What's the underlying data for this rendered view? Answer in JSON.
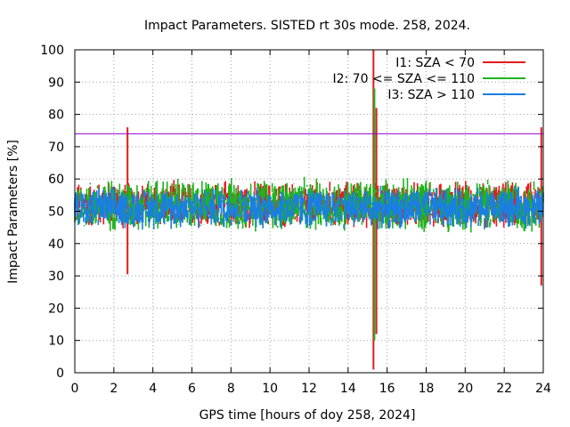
{
  "chart_data": {
    "type": "line",
    "title": "Impact Parameters. SISTED rt 30s mode. 258, 2024.",
    "xlabel": "GPS time [hours of doy 258, 2024]",
    "ylabel": "Impact Parameters [%]",
    "xlim": [
      0,
      24
    ],
    "ylim": [
      0,
      100
    ],
    "x_ticks": [
      "0",
      "2",
      "4",
      "6",
      "8",
      "10",
      "12",
      "14",
      "16",
      "18",
      "20",
      "22",
      "24"
    ],
    "y_ticks": [
      "0",
      "10",
      "20",
      "30",
      "40",
      "50",
      "60",
      "70",
      "80",
      "90",
      "100"
    ],
    "grid": true,
    "legend_position": "top-right",
    "reference_line": {
      "y": 74,
      "color": "#9400d3"
    },
    "series": [
      {
        "name": "I1: SZA < 70",
        "color": "#e41a1c",
        "typical_range": [
          44,
          60
        ],
        "spikes": [
          {
            "x": 2.7,
            "min": 30.5,
            "max": 76
          },
          {
            "x": 15.3,
            "min": 1,
            "max": 100
          },
          {
            "x": 15.45,
            "min": 12,
            "max": 82
          },
          {
            "x": 23.9,
            "min": 27,
            "max": 76
          }
        ]
      },
      {
        "name": "I2: 70 <= SZA <= 110",
        "color": "#1fb41f",
        "typical_range": [
          43,
          61
        ],
        "spikes": [
          {
            "x": 15.35,
            "min": 10,
            "max": 88
          }
        ]
      },
      {
        "name": "I3: SZA > 110",
        "color": "#1a7fe0",
        "typical_range": [
          44,
          58
        ],
        "spikes": []
      }
    ]
  }
}
